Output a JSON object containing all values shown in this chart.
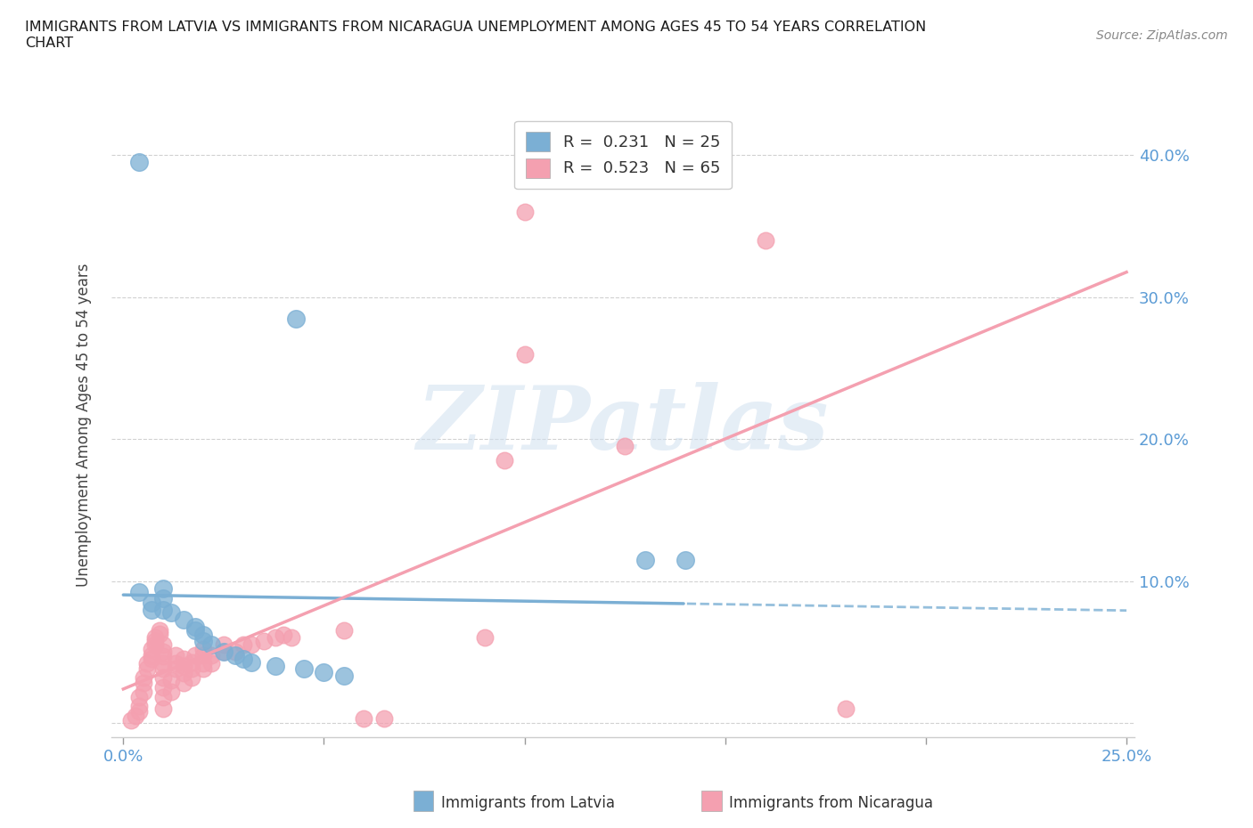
{
  "title": "IMMIGRANTS FROM LATVIA VS IMMIGRANTS FROM NICARAGUA UNEMPLOYMENT AMONG AGES 45 TO 54 YEARS CORRELATION\nCHART",
  "source": "Source: ZipAtlas.com",
  "ylabel": "Unemployment Among Ages 45 to 54 years",
  "xlim": [
    0.0,
    0.25
  ],
  "ylim": [
    0.0,
    0.42
  ],
  "background_color": "#ffffff",
  "watermark_text": "ZIPatlas",
  "latvia_color": "#7bafd4",
  "nicaragua_color": "#f4a0b0",
  "latvia_R": 0.231,
  "latvia_N": 25,
  "nicaragua_R": 0.523,
  "nicaragua_N": 65,
  "latvia_points": [
    [
      0.004,
      0.395
    ],
    [
      0.043,
      0.285
    ],
    [
      0.004,
      0.092
    ],
    [
      0.007,
      0.085
    ],
    [
      0.007,
      0.08
    ],
    [
      0.01,
      0.095
    ],
    [
      0.01,
      0.088
    ],
    [
      0.01,
      0.08
    ],
    [
      0.012,
      0.078
    ],
    [
      0.015,
      0.073
    ],
    [
      0.018,
      0.068
    ],
    [
      0.018,
      0.065
    ],
    [
      0.02,
      0.062
    ],
    [
      0.02,
      0.058
    ],
    [
      0.022,
      0.055
    ],
    [
      0.025,
      0.05
    ],
    [
      0.028,
      0.048
    ],
    [
      0.03,
      0.045
    ],
    [
      0.032,
      0.043
    ],
    [
      0.038,
      0.04
    ],
    [
      0.045,
      0.038
    ],
    [
      0.05,
      0.036
    ],
    [
      0.055,
      0.033
    ],
    [
      0.13,
      0.115
    ],
    [
      0.14,
      0.115
    ]
  ],
  "nicaragua_points": [
    [
      0.002,
      0.002
    ],
    [
      0.003,
      0.005
    ],
    [
      0.004,
      0.008
    ],
    [
      0.004,
      0.012
    ],
    [
      0.004,
      0.018
    ],
    [
      0.005,
      0.022
    ],
    [
      0.005,
      0.028
    ],
    [
      0.005,
      0.032
    ],
    [
      0.006,
      0.038
    ],
    [
      0.006,
      0.042
    ],
    [
      0.007,
      0.045
    ],
    [
      0.007,
      0.048
    ],
    [
      0.007,
      0.052
    ],
    [
      0.008,
      0.055
    ],
    [
      0.008,
      0.058
    ],
    [
      0.008,
      0.06
    ],
    [
      0.009,
      0.063
    ],
    [
      0.009,
      0.065
    ],
    [
      0.01,
      0.01
    ],
    [
      0.01,
      0.018
    ],
    [
      0.01,
      0.025
    ],
    [
      0.01,
      0.032
    ],
    [
      0.01,
      0.038
    ],
    [
      0.01,
      0.042
    ],
    [
      0.01,
      0.047
    ],
    [
      0.01,
      0.05
    ],
    [
      0.01,
      0.055
    ],
    [
      0.012,
      0.022
    ],
    [
      0.012,
      0.03
    ],
    [
      0.013,
      0.038
    ],
    [
      0.013,
      0.042
    ],
    [
      0.013,
      0.048
    ],
    [
      0.015,
      0.028
    ],
    [
      0.015,
      0.035
    ],
    [
      0.015,
      0.04
    ],
    [
      0.015,
      0.045
    ],
    [
      0.017,
      0.032
    ],
    [
      0.017,
      0.038
    ],
    [
      0.017,
      0.043
    ],
    [
      0.018,
      0.048
    ],
    [
      0.02,
      0.038
    ],
    [
      0.02,
      0.042
    ],
    [
      0.02,
      0.048
    ],
    [
      0.02,
      0.052
    ],
    [
      0.022,
      0.042
    ],
    [
      0.022,
      0.048
    ],
    [
      0.025,
      0.05
    ],
    [
      0.025,
      0.055
    ],
    [
      0.028,
      0.05
    ],
    [
      0.03,
      0.055
    ],
    [
      0.032,
      0.055
    ],
    [
      0.035,
      0.058
    ],
    [
      0.038,
      0.06
    ],
    [
      0.04,
      0.062
    ],
    [
      0.042,
      0.06
    ],
    [
      0.055,
      0.065
    ],
    [
      0.06,
      0.003
    ],
    [
      0.065,
      0.003
    ],
    [
      0.09,
      0.06
    ],
    [
      0.095,
      0.185
    ],
    [
      0.1,
      0.26
    ],
    [
      0.1,
      0.36
    ],
    [
      0.125,
      0.195
    ],
    [
      0.16,
      0.34
    ],
    [
      0.18,
      0.01
    ]
  ]
}
